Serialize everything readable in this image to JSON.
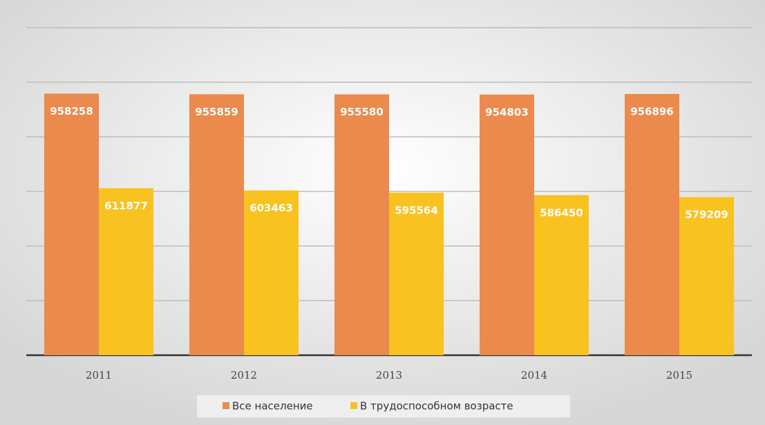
{
  "chart_data": {
    "type": "bar",
    "categories": [
      "2011",
      "2012",
      "2013",
      "2014",
      "2015"
    ],
    "series": [
      {
        "name": "Все население",
        "color": "#eb8a4c",
        "values": [
          958258,
          955859,
          955580,
          954803,
          956896
        ]
      },
      {
        "name": "В трудоспособном возрасте",
        "color": "#f8c220",
        "values": [
          611877,
          603463,
          595564,
          586450,
          579209
        ]
      }
    ],
    "ylim": [
      0,
      1200000
    ],
    "yticks": [
      0,
      200000,
      400000,
      600000,
      800000,
      1000000,
      1200000
    ],
    "grid": true
  }
}
